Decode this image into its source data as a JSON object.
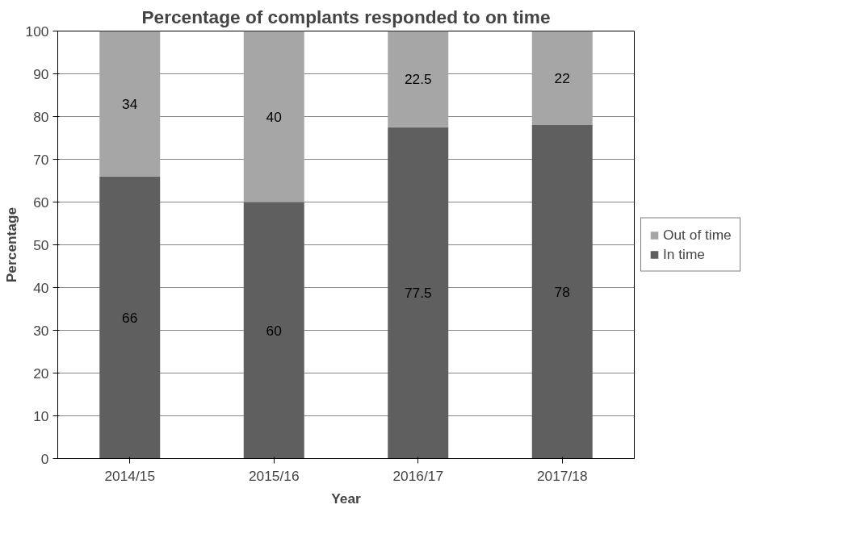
{
  "chart_data": {
    "type": "bar",
    "title": "Percentage of complants responded to on time",
    "xlabel": "Year",
    "ylabel": "Percentage",
    "categories": [
      "2014/15",
      "2015/16",
      "2016/17",
      "2017/18"
    ],
    "series": [
      {
        "name": "In time",
        "color": "#5f5f5f",
        "values": [
          66,
          60,
          77.5,
          78
        ]
      },
      {
        "name": "Out of time",
        "color": "#a6a6a6",
        "values": [
          34,
          40,
          22.5,
          22
        ]
      }
    ],
    "stacked": true,
    "ylim": [
      0,
      100
    ],
    "yticks": [
      0,
      10,
      20,
      30,
      40,
      50,
      60,
      70,
      80,
      90,
      100
    ],
    "grid": "y",
    "legend": "right",
    "data_labels": true
  }
}
